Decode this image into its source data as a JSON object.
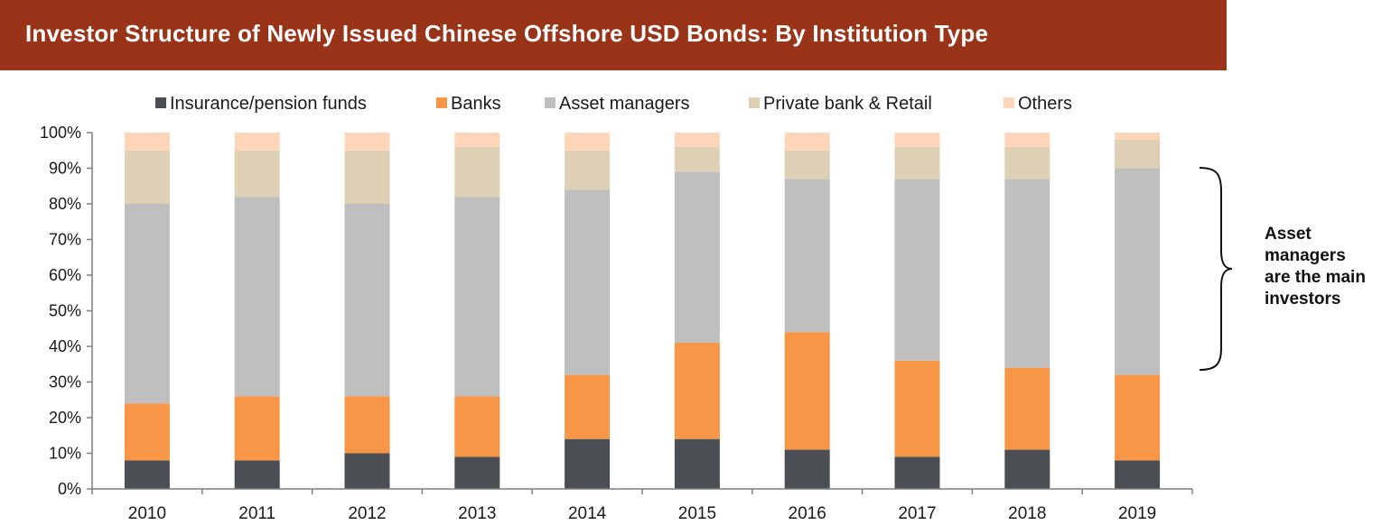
{
  "title": "Investor Structure of Newly Issued Chinese Offshore USD Bonds: By Institution Type",
  "annotation": {
    "lines": [
      "Asset",
      "managers",
      "are the main",
      "investors"
    ]
  },
  "colors": {
    "title_bar": "#9a3419",
    "insurance": "#4b4e53",
    "banks": "#f79646",
    "asset_managers": "#bfbfbf",
    "private_bank": "#ddd0b4",
    "others": "#fdd5b8"
  },
  "chart_data": {
    "type": "bar",
    "stacked": true,
    "categories": [
      "2010",
      "2011",
      "2012",
      "2013",
      "2014",
      "2015",
      "2016",
      "2017",
      "2018",
      "2019"
    ],
    "series": [
      {
        "name": "Insurance/pension funds",
        "color": "#4b4e53",
        "values": [
          8,
          8,
          10,
          9,
          14,
          14,
          11,
          9,
          11,
          8
        ]
      },
      {
        "name": "Banks",
        "color": "#f79646",
        "values": [
          16,
          18,
          16,
          17,
          18,
          27,
          33,
          27,
          23,
          24
        ]
      },
      {
        "name": "Asset managers",
        "color": "#bfbfbf",
        "values": [
          56,
          56,
          54,
          56,
          52,
          48,
          43,
          51,
          53,
          58
        ]
      },
      {
        "name": "Private bank & Retail",
        "color": "#ddd0b4",
        "values": [
          15,
          13,
          15,
          14,
          11,
          7,
          8,
          9,
          9,
          8
        ]
      },
      {
        "name": "Others",
        "color": "#fdd5b8",
        "values": [
          5,
          5,
          5,
          4,
          5,
          4,
          5,
          4,
          4,
          2
        ]
      }
    ],
    "yticks": [
      "0%",
      "10%",
      "20%",
      "30%",
      "40%",
      "50%",
      "60%",
      "70%",
      "80%",
      "90%",
      "100%"
    ],
    "ylim": [
      0,
      100
    ],
    "legend_position": "top",
    "grid": false
  }
}
